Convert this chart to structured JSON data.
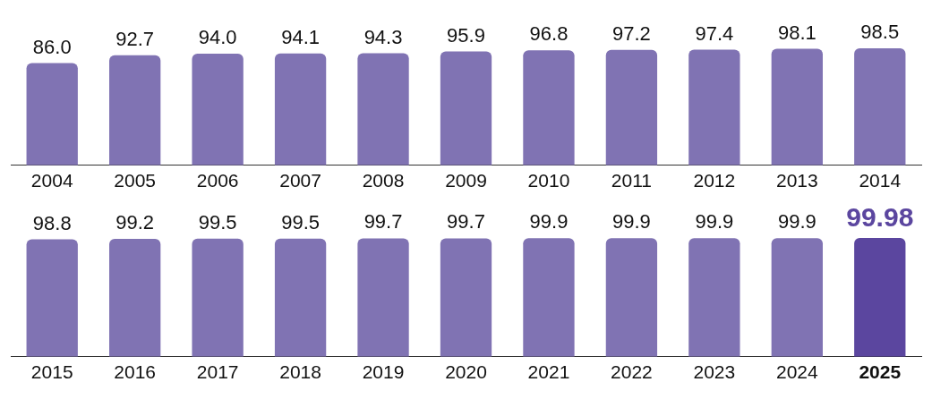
{
  "chart_data": [
    {
      "type": "bar",
      "categories": [
        "2004",
        "2005",
        "2006",
        "2007",
        "2008",
        "2009",
        "2010",
        "2011",
        "2012",
        "2013",
        "2014"
      ],
      "values": [
        86.0,
        92.7,
        94.0,
        94.1,
        94.3,
        95.9,
        96.8,
        97.2,
        97.4,
        98.1,
        98.5
      ],
      "value_labels": [
        "86.0",
        "92.7",
        "94.0",
        "94.1",
        "94.3",
        "95.9",
        "96.8",
        "97.2",
        "97.4",
        "98.1",
        "98.5"
      ],
      "color": "#8073b3",
      "tick_labels": "x",
      "grid": false,
      "legend": false
    },
    {
      "type": "bar",
      "categories": [
        "2015",
        "2016",
        "2017",
        "2018",
        "2019",
        "2020",
        "2021",
        "2022",
        "2023",
        "2024",
        "2025"
      ],
      "values": [
        98.8,
        99.2,
        99.5,
        99.5,
        99.7,
        99.7,
        99.9,
        99.9,
        99.9,
        99.9,
        99.98
      ],
      "value_labels": [
        "98.8",
        "99.2",
        "99.5",
        "99.5",
        "99.7",
        "99.7",
        "99.9",
        "99.9",
        "99.9",
        "99.9",
        "99.98"
      ],
      "color": "#8073b3",
      "colors": [
        "#8073b3",
        "#8073b3",
        "#8073b3",
        "#8073b3",
        "#8073b3",
        "#8073b3",
        "#8073b3",
        "#8073b3",
        "#8073b3",
        "#8073b3",
        "#5b469f"
      ],
      "tick_labels": "x",
      "grid": false,
      "legend": false
    }
  ]
}
